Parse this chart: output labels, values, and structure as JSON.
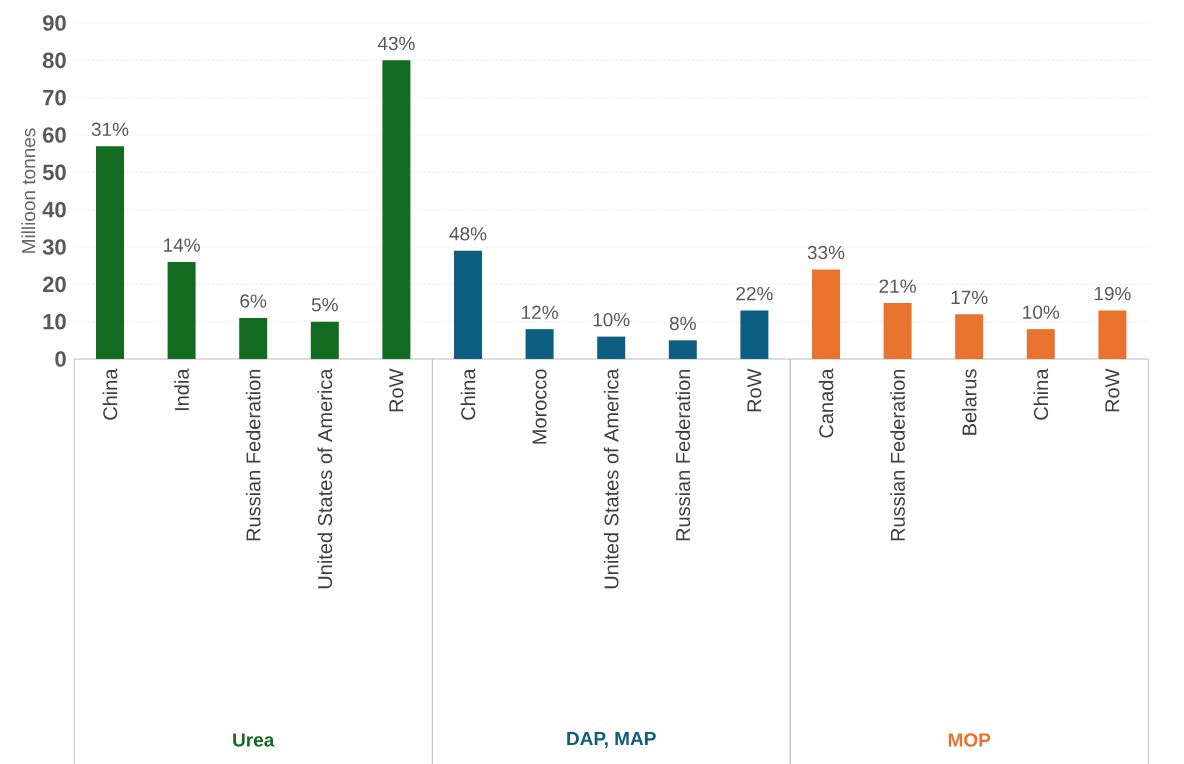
{
  "chart_data": {
    "type": "bar",
    "ylabel": "Millioon tonnes",
    "categories": [
      "China",
      "India",
      "Russian Federation",
      "United States of America",
      "RoW",
      "China",
      "Morocco",
      "United States of America",
      "Russian Federation",
      "RoW",
      "Canada",
      "Russian Federation",
      "Belarus",
      "China",
      "RoW"
    ],
    "series": [
      {
        "name": "Urea",
        "color": "#126b21",
        "values": [
          57,
          26,
          11,
          10,
          80,
          null,
          null,
          null,
          null,
          null,
          null,
          null,
          null,
          null,
          null
        ]
      },
      {
        "name": "DAP, MAP",
        "color": "#0d5e80",
        "values": [
          null,
          null,
          null,
          null,
          null,
          29,
          8,
          6,
          5,
          13,
          null,
          null,
          null,
          null,
          null
        ]
      },
      {
        "name": "MOP",
        "color": "#e8732e",
        "values": [
          null,
          null,
          null,
          null,
          null,
          null,
          null,
          null,
          null,
          null,
          24,
          15,
          12,
          8,
          13
        ]
      }
    ],
    "annotations": [
      "31%",
      "14%",
      "6%",
      "5%",
      "43%",
      "48%",
      "12%",
      "10%",
      "8%",
      "22%",
      "33%",
      "21%",
      "17%",
      "10%",
      "19%"
    ],
    "ylim": [
      0,
      90
    ],
    "yticks": [
      0,
      10,
      20,
      30,
      40,
      50,
      60,
      70,
      80,
      90
    ],
    "grid": "y"
  }
}
